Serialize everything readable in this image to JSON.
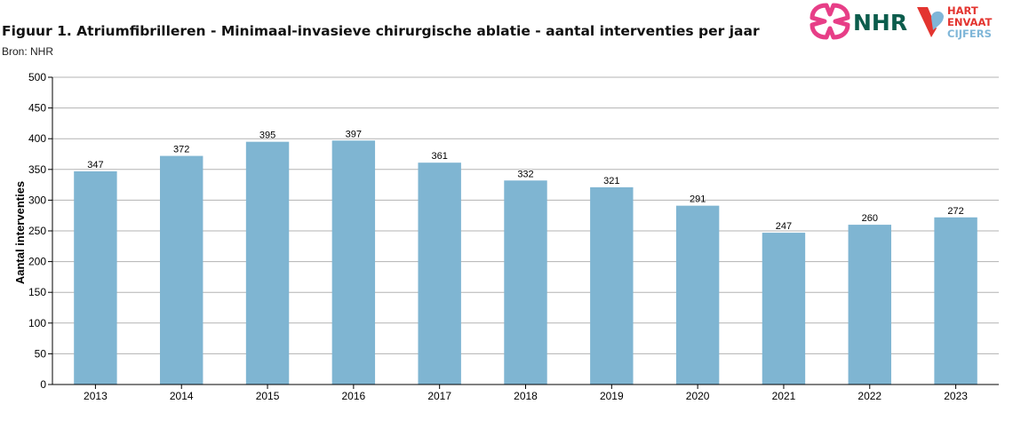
{
  "title": "Figuur 1. Atriumfibrilleren - Minimaal-invasieve chirurgische ablatie - aantal interventies per jaar",
  "source": "Bron: NHR",
  "logos": {
    "nhr_text": "NHR",
    "hart_line1": "HART",
    "hart_line2": "ENVAAT",
    "hart_line3": "CIJFERS",
    "nhr_color": "#e73e87",
    "nhr_text_color": "#0b5c4c",
    "hart_red": "#e3342f",
    "hart_blue": "#7fb6d8"
  },
  "chart_data": {
    "type": "bar",
    "categories": [
      "2013",
      "2014",
      "2015",
      "2016",
      "2017",
      "2018",
      "2019",
      "2020",
      "2021",
      "2022",
      "2023"
    ],
    "values": [
      347,
      372,
      395,
      397,
      361,
      332,
      321,
      291,
      247,
      260,
      272
    ],
    "ylabel": "Aantal interventies",
    "xlabel": "",
    "ylim": [
      0,
      500
    ],
    "yticks": [
      0,
      50,
      100,
      150,
      200,
      250,
      300,
      350,
      400,
      450,
      500
    ],
    "grid": true,
    "data_labels": true,
    "bar_color": "#7fb5d2",
    "grid_color": "#b3b3b3"
  }
}
